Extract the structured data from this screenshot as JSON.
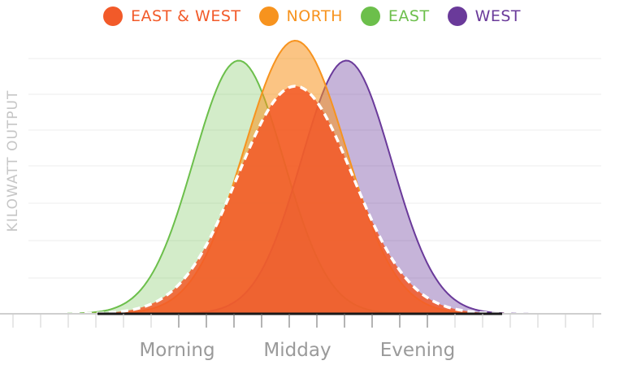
{
  "chart_data": {
    "type": "area",
    "title": "",
    "ylabel": "KILOWATT OUTPUT",
    "xlabel": "",
    "x_tick_labels": [
      {
        "label": "Morning",
        "x": 0.3
      },
      {
        "label": "Midday",
        "x": 0.5
      },
      {
        "label": "Evening",
        "x": 0.7
      }
    ],
    "xlim": [
      0,
      1
    ],
    "ylim": [
      0,
      1
    ],
    "grid": true,
    "legend_position": "top",
    "series": [
      {
        "name": "EAST & WEST",
        "color": "#f25a29",
        "peak_x": 0.491,
        "peak_y": 0.8,
        "width": 0.0955,
        "dashed_outline": true
      },
      {
        "name": "NORTH",
        "color": "#f7931e",
        "peak_x": 0.491,
        "peak_y": 0.96,
        "width": 0.0845
      },
      {
        "name": "EAST",
        "color": "#6cbf4b",
        "peak_x": 0.397,
        "peak_y": 0.89,
        "width": 0.075
      },
      {
        "name": "WEST",
        "color": "#6a3a9a",
        "peak_x": 0.576,
        "peak_y": 0.89,
        "width": 0.075
      }
    ]
  }
}
